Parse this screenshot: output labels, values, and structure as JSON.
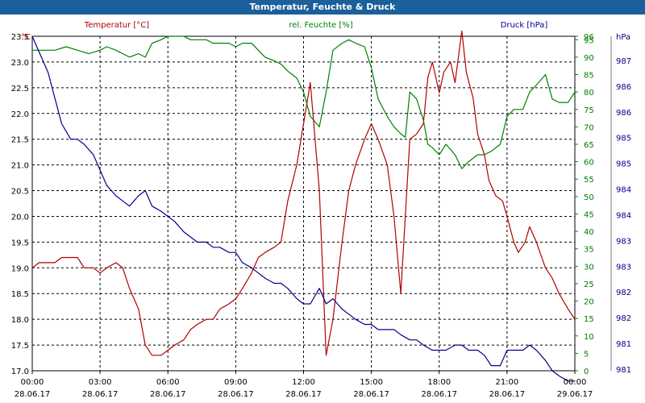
{
  "window": {
    "title": "Temperatur, Feuchte & Druck"
  },
  "chart_data": {
    "type": "line",
    "title": "Temperatur, Feuchte & Druck",
    "x_ticks": [
      {
        "time": "00:00",
        "date": "28.06.17"
      },
      {
        "time": "03:00",
        "date": "28.06.17"
      },
      {
        "time": "06:00",
        "date": "28.06.17"
      },
      {
        "time": "09:00",
        "date": "28.06.17"
      },
      {
        "time": "12:00",
        "date": "28.06.17"
      },
      {
        "time": "15:00",
        "date": "28.06.17"
      },
      {
        "time": "18:00",
        "date": "28.06.17"
      },
      {
        "time": "21:00",
        "date": "28.06.17"
      },
      {
        "time": "00:00",
        "date": "29.06.17"
      }
    ],
    "x_range_hours": [
      0,
      24
    ],
    "grid": true,
    "axes": {
      "temperature": {
        "unit": "°C",
        "range": [
          17.0,
          23.5
        ],
        "ticks": [
          "23.5",
          "23.0",
          "22.5",
          "22.0",
          "21.5",
          "21.0",
          "20.5",
          "20.0",
          "19.5",
          "19.0",
          "18.5",
          "18.0",
          "17.5",
          "17.0"
        ],
        "color": "#b00000"
      },
      "humidity": {
        "unit": "%",
        "range": [
          0,
          96
        ],
        "ticks": [
          "96",
          "95",
          "90",
          "85",
          "80",
          "75",
          "70",
          "65",
          "60",
          "55",
          "50",
          "45",
          "40",
          "35",
          "30",
          "25",
          "20",
          "15",
          "10",
          "5",
          "0"
        ],
        "color": "#008000"
      },
      "pressure": {
        "unit": "hPa",
        "range": [
          981,
          987.5
        ],
        "ticks": [
          "987",
          "986",
          "986",
          "985",
          "985",
          "984",
          "984",
          "983",
          "983",
          "982",
          "982",
          "981",
          "981"
        ],
        "color": "#00008b"
      }
    },
    "series": [
      {
        "name": "Temperatur [°C]",
        "axis": "temperature",
        "color": "#b00000",
        "x": [
          0,
          0.3,
          0.7,
          1,
          1.3,
          1.7,
          2,
          2.3,
          2.7,
          3,
          3.3,
          3.7,
          4,
          4.3,
          4.7,
          5,
          5.3,
          5.7,
          6,
          6.3,
          6.7,
          7,
          7.3,
          7.7,
          8,
          8.3,
          8.7,
          9,
          9.3,
          9.7,
          10,
          10.3,
          10.7,
          11,
          11.3,
          11.7,
          12,
          12.3,
          12.7,
          13,
          13.3,
          13.7,
          14,
          14.3,
          14.7,
          15,
          15.3,
          15.7,
          16,
          16.3,
          16.5,
          16.7,
          17,
          17.3,
          17.5,
          17.7,
          18,
          18.2,
          18.5,
          18.7,
          19,
          19.2,
          19.5,
          19.7,
          20,
          20.2,
          20.5,
          20.8,
          21,
          21.3,
          21.5,
          21.8,
          22,
          22.3,
          22.7,
          23,
          23.3,
          23.7,
          24
        ],
        "values": [
          19.0,
          19.1,
          19.1,
          19.1,
          19.2,
          19.2,
          19.2,
          19.0,
          19.0,
          18.9,
          19.0,
          19.1,
          19.0,
          18.6,
          18.2,
          17.5,
          17.3,
          17.3,
          17.4,
          17.5,
          17.6,
          17.8,
          17.9,
          18.0,
          18.0,
          18.2,
          18.3,
          18.4,
          18.6,
          18.9,
          19.2,
          19.3,
          19.4,
          19.5,
          20.3,
          21.0,
          21.8,
          22.6,
          20.5,
          17.3,
          18.0,
          19.5,
          20.5,
          21.0,
          21.5,
          21.8,
          21.5,
          21.0,
          20.0,
          18.5,
          20.0,
          21.5,
          21.6,
          21.8,
          22.7,
          23.0,
          22.4,
          22.8,
          23.0,
          22.6,
          23.6,
          22.8,
          22.3,
          21.6,
          21.2,
          20.7,
          20.4,
          20.3,
          20.0,
          19.5,
          19.3,
          19.5,
          19.8,
          19.5,
          19.0,
          18.8,
          18.5,
          18.2,
          18.0
        ]
      },
      {
        "name": "rel. Feuchte [%]",
        "axis": "humidity",
        "color": "#008000",
        "x": [
          0,
          0.5,
          1,
          1.5,
          2,
          2.5,
          3,
          3.3,
          3.7,
          4,
          4.3,
          4.7,
          5,
          5.3,
          5.7,
          6,
          6.3,
          6.7,
          7,
          7.3,
          7.7,
          8,
          8.3,
          8.7,
          9,
          9.3,
          9.7,
          10,
          10.3,
          10.7,
          11,
          11.3,
          11.7,
          12,
          12.3,
          12.7,
          13,
          13.3,
          13.7,
          14,
          14.3,
          14.7,
          15,
          15.3,
          15.7,
          16,
          16.3,
          16.5,
          16.7,
          17,
          17.3,
          17.5,
          17.7,
          18,
          18.3,
          18.7,
          19,
          19.3,
          19.7,
          20,
          20.3,
          20.7,
          21,
          21.3,
          21.7,
          22,
          22.3,
          22.7,
          23,
          23.3,
          23.7,
          24
        ],
        "values": [
          92,
          92,
          92,
          93,
          92,
          91,
          92,
          93,
          92,
          91,
          90,
          91,
          90,
          94,
          95,
          96,
          96,
          96,
          95,
          95,
          95,
          94,
          94,
          94,
          93,
          94,
          94,
          92,
          90,
          89,
          88,
          86,
          84,
          80,
          73,
          70,
          80,
          92,
          94,
          95,
          94,
          93,
          87,
          78,
          73,
          70,
          68,
          67,
          80,
          78,
          72,
          65,
          64,
          62,
          65,
          62,
          58,
          60,
          62,
          62,
          63,
          65,
          73,
          75,
          75,
          80,
          82,
          85,
          78,
          77,
          77,
          80
        ]
      },
      {
        "name": "Druck [hPa]",
        "axis": "pressure",
        "color": "#00008b",
        "x": [
          0,
          0.3,
          0.7,
          1,
          1.3,
          1.7,
          2,
          2.3,
          2.7,
          3,
          3.3,
          3.7,
          4,
          4.3,
          4.7,
          5,
          5.3,
          5.7,
          6,
          6.3,
          6.7,
          7,
          7.3,
          7.7,
          8,
          8.3,
          8.7,
          9,
          9.3,
          9.7,
          10,
          10.3,
          10.7,
          11,
          11.3,
          11.7,
          12,
          12.3,
          12.7,
          13,
          13.3,
          13.7,
          14,
          14.3,
          14.7,
          15,
          15.3,
          15.7,
          16,
          16.3,
          16.7,
          17,
          17.3,
          17.7,
          18,
          18.3,
          18.7,
          19,
          19.3,
          19.7,
          20,
          20.3,
          20.7,
          21,
          21.3,
          21.7,
          22,
          22.3,
          22.7,
          23,
          23.3,
          23.7,
          24
        ],
        "values": [
          987.5,
          987.2,
          986.8,
          986.3,
          985.8,
          985.5,
          985.5,
          985.4,
          985.2,
          984.9,
          984.6,
          984.4,
          984.3,
          984.2,
          984.4,
          984.5,
          984.2,
          984.1,
          984.0,
          983.9,
          983.7,
          983.6,
          983.5,
          983.5,
          983.4,
          983.4,
          983.3,
          983.3,
          983.1,
          983.0,
          982.9,
          982.8,
          982.7,
          982.7,
          982.6,
          982.4,
          982.3,
          982.3,
          982.6,
          982.3,
          982.4,
          982.2,
          982.1,
          982.0,
          981.9,
          981.9,
          981.8,
          981.8,
          981.8,
          981.7,
          981.6,
          981.6,
          981.5,
          981.4,
          981.4,
          981.4,
          981.5,
          981.5,
          981.4,
          981.4,
          981.3,
          981.1,
          981.1,
          981.4,
          981.4,
          981.4,
          981.5,
          981.4,
          981.2,
          981.0,
          980.9,
          980.8,
          980.8
        ]
      }
    ]
  }
}
